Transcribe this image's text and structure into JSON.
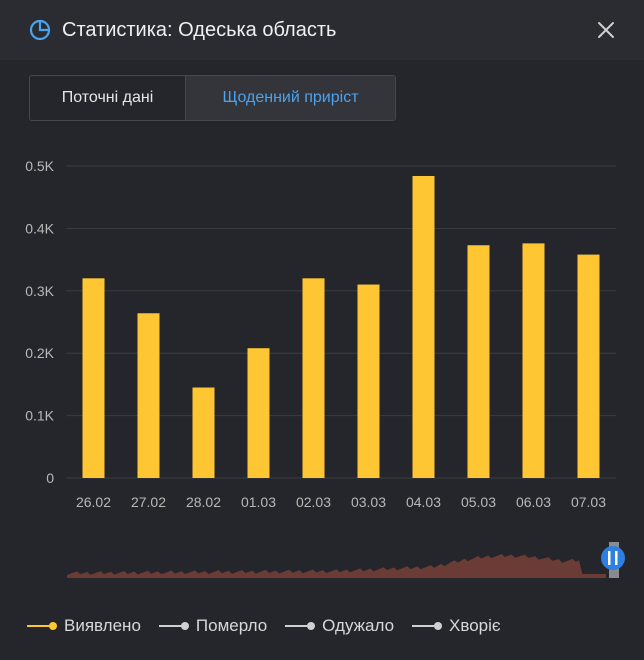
{
  "header": {
    "title": "Статистика: Одеська область"
  },
  "tabs": [
    {
      "label": "Поточні дані",
      "active": false
    },
    {
      "label": "Щоденний приріст",
      "active": true
    }
  ],
  "colors": {
    "bar": "#ffc633",
    "accent": "#4aa3ef",
    "grid": "#3b3c42",
    "brush": "#6b3c36"
  },
  "chart_data": {
    "type": "bar",
    "categories": [
      "26.02",
      "27.02",
      "28.02",
      "01.03",
      "02.03",
      "03.03",
      "04.03",
      "05.03",
      "06.03",
      "07.03"
    ],
    "series": [
      {
        "name": "Виявлено",
        "values": [
          320,
          264,
          145,
          208,
          320,
          310,
          484,
          373,
          376,
          358
        ]
      }
    ],
    "ylim": [
      0,
      500
    ],
    "yticks": [
      "0",
      "0.1K",
      "0.2K",
      "0.3K",
      "0.4K",
      "0.5K"
    ],
    "grid": true,
    "legend_position": "bottom-left"
  },
  "legend": [
    {
      "label": "Виявлено",
      "color": "#ffc633"
    },
    {
      "label": "Померло",
      "color": "#d0d0d0"
    },
    {
      "label": "Одужало",
      "color": "#d0d0d0"
    },
    {
      "label": "Хворіє",
      "color": "#d0d0d0"
    }
  ]
}
